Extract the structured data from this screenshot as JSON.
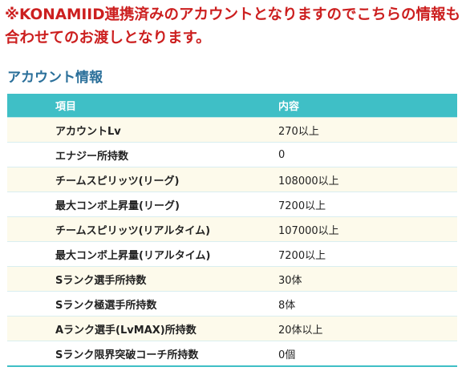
{
  "notice": {
    "text": "※KONAMIID連携済みのアカウントとなりますのでこちらの情報も合わせてのお渡しとなります。"
  },
  "section": {
    "title": "アカウント情報"
  },
  "table": {
    "headers": {
      "item": "項目",
      "value": "内容"
    },
    "rows": [
      {
        "label": "アカウントLv",
        "value": "270以上"
      },
      {
        "label": "エナジー所持数",
        "value": "0"
      },
      {
        "label": "チームスピリッツ(リーグ)",
        "value": "108000以上"
      },
      {
        "label": "最大コンボ上昇量(リーグ)",
        "value": "7200以上"
      },
      {
        "label": "チームスピリッツ(リアルタイム)",
        "value": "107000以上"
      },
      {
        "label": "最大コンボ上昇量(リアルタイム)",
        "value": "7200以上"
      },
      {
        "label": "Sランク選手所持数",
        "value": "30体"
      },
      {
        "label": "Sランク極選手所持数",
        "value": "8体"
      },
      {
        "label": "Aランク選手(LvMAX)所持数",
        "value": "20体以上"
      },
      {
        "label": "Sランク限界突破コーチ所持数",
        "value": "0個"
      }
    ]
  },
  "colors": {
    "notice_text": "#cc1f1f",
    "section_title": "#2a6f9a",
    "table_header_bg": "#3fbfc6",
    "table_row_alt_bg": "#fdfaeb"
  }
}
